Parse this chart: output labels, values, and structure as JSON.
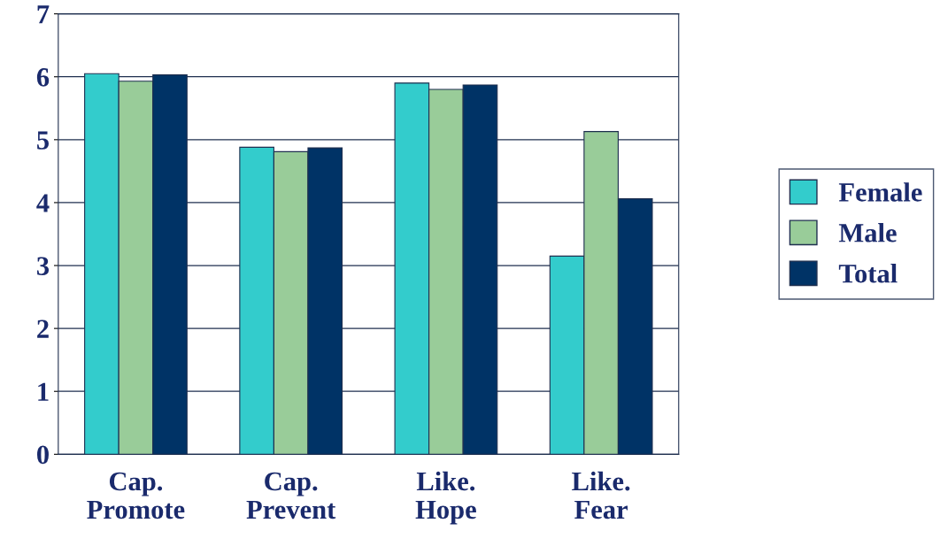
{
  "chart_data": {
    "type": "bar",
    "categories": [
      "Cap.\nPromote",
      "Cap.\nPrevent",
      "Like.\nHope",
      "Like.\nFear"
    ],
    "series": [
      {
        "name": "Female",
        "color": "#33cccc",
        "values": [
          6.05,
          4.88,
          5.9,
          3.15
        ]
      },
      {
        "name": "Male",
        "color": "#99cc99",
        "values": [
          5.93,
          4.81,
          5.8,
          5.13
        ]
      },
      {
        "name": "Total",
        "color": "#003366",
        "values": [
          6.03,
          4.87,
          5.87,
          4.06
        ]
      }
    ],
    "ylim": [
      0,
      7
    ],
    "yticks": [
      0,
      1,
      2,
      3,
      4,
      5,
      6,
      7
    ],
    "grid": "y",
    "legend": "right"
  }
}
